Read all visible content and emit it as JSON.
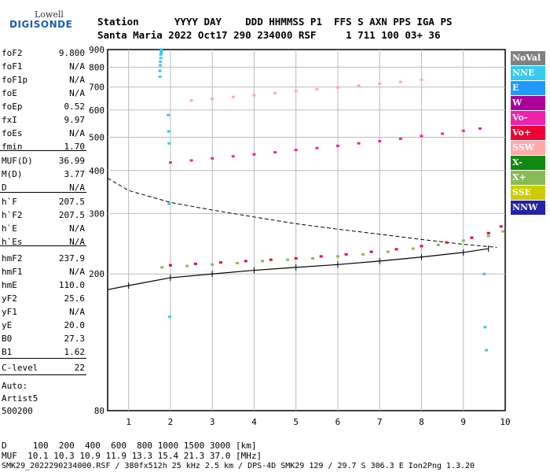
{
  "logo": {
    "line1": "Lowell",
    "line2": "DIGISONDE"
  },
  "header": {
    "labels": "Station      YYYY DAY    DDD HHMMSS P1  FFS S AXN PPS IGA PS",
    "values": "Santa Maria 2022 Oct17 290 234000 RSF     1 711 100 03+ 36"
  },
  "params": [
    {
      "name": "foF2",
      "value": "9.800"
    },
    {
      "name": "foF1",
      "value": "N/A"
    },
    {
      "name": "foF1p",
      "value": "N/A"
    },
    {
      "name": "foE",
      "value": "N/A"
    },
    {
      "name": "foEp",
      "value": "0.52"
    },
    {
      "name": "fxI",
      "value": "9.97"
    },
    {
      "name": "foEs",
      "value": "N/A"
    },
    {
      "name": "fmin",
      "value": "1.70"
    },
    {
      "name": "MUF(D)",
      "value": "36.99"
    },
    {
      "name": "M(D)",
      "value": "3.77"
    },
    {
      "name": "D",
      "value": "N/A"
    },
    {
      "name": "h`F",
      "value": "207.5"
    },
    {
      "name": "h`F2",
      "value": "207.5"
    },
    {
      "name": "h`E",
      "value": "N/A"
    },
    {
      "name": "h`Es",
      "value": "N/A"
    },
    {
      "name": "hmF2",
      "value": "237.9"
    },
    {
      "name": "hmF1",
      "value": "N/A"
    },
    {
      "name": "hmE",
      "value": "110.0"
    },
    {
      "name": "yF2",
      "value": "25.6"
    },
    {
      "name": "yF1",
      "value": "N/A"
    },
    {
      "name": "yE",
      "value": "20.0"
    },
    {
      "name": "B0",
      "value": "27.3"
    },
    {
      "name": "B1",
      "value": "1.62"
    },
    {
      "name": "C-level",
      "value": "22"
    }
  ],
  "notes": [
    "Auto:",
    "Artist5",
    "500200"
  ],
  "legend": [
    {
      "label": "NoVal",
      "color": "#808080"
    },
    {
      "label": "NNE",
      "color": "#33ccee"
    },
    {
      "label": "E",
      "color": "#2299ff"
    },
    {
      "label": "W",
      "color": "#aa0099"
    },
    {
      "label": "Vo-",
      "color": "#ee22aa"
    },
    {
      "label": "Vo+",
      "color": "#ee0033"
    },
    {
      "label": "SSW",
      "color": "#ffaaaa"
    },
    {
      "label": "X-",
      "color": "#118811"
    },
    {
      "label": "X+",
      "color": "#88bb55"
    },
    {
      "label": "SSE",
      "color": "#cccc00"
    },
    {
      "label": "NNW",
      "color": "#2222aa"
    }
  ],
  "footer": {
    "line1": "D     100  200  400  600  800 1000 1500 3000 [km]",
    "line2": "MUF  10.1 10.3 10.9 11.9 13.3 15.4 21.3 37.0 [MHz]",
    "line3": "SMK29_2022290234000.RSF / 380fx512h 25 kHz 2.5 km / DPS-4D SMK29 129 / 29.7 S 306.3 E Ion2Png 1.3.20"
  },
  "chart_data": {
    "type": "scatter",
    "xlabel": "",
    "ylabel": "",
    "xlim": [
      0.5,
      10
    ],
    "ylim": [
      80,
      900
    ],
    "x_ticks": [
      1,
      2,
      3,
      4,
      5,
      6,
      7,
      8,
      9,
      10
    ],
    "y_ticks": [
      80,
      200,
      300,
      400,
      500,
      600,
      700,
      800,
      900
    ],
    "y_scale": "log",
    "grid": true,
    "series": [
      {
        "name": "Vo+",
        "color": "#ee0033",
        "x": [
          2.0,
          2.6,
          3.2,
          3.8,
          4.4,
          5.0,
          5.6,
          6.2,
          6.8,
          7.4,
          8.0,
          8.6,
          9.2,
          9.6,
          9.9
        ],
        "y": [
          212,
          214,
          216,
          218,
          220,
          222,
          225,
          228,
          232,
          236,
          241,
          247,
          255,
          263,
          275
        ]
      },
      {
        "name": "X+",
        "color": "#88bb55",
        "x": [
          1.8,
          2.4,
          3.0,
          3.6,
          4.2,
          4.8,
          5.4,
          6.0,
          6.6,
          7.2,
          7.8,
          8.4,
          9.0,
          9.6,
          9.95
        ],
        "y": [
          209,
          211,
          213,
          215,
          218,
          220,
          222,
          225,
          228,
          232,
          237,
          243,
          250,
          258,
          266
        ]
      },
      {
        "name": "Vo-",
        "color": "#ee22aa",
        "x": [
          2.0,
          2.5,
          3.0,
          3.5,
          4.0,
          4.5,
          5.0,
          5.5,
          6.0,
          6.5,
          7.0,
          7.5,
          8.0,
          8.5,
          9.0,
          9.4
        ],
        "y": [
          422,
          428,
          434,
          440,
          446,
          452,
          459,
          465,
          472,
          480,
          487,
          495,
          504,
          512,
          522,
          530
        ]
      },
      {
        "name": "SSW",
        "color": "#ffaaaa",
        "x": [
          2.5,
          3.0,
          3.5,
          4.0,
          4.5,
          5.0,
          5.5,
          6.0,
          6.5,
          7.0,
          7.5,
          8.0
        ],
        "y": [
          640,
          647,
          655,
          663,
          672,
          681,
          690,
          698,
          707,
          716,
          725,
          735
        ]
      },
      {
        "name": "NNE",
        "color": "#33ccee",
        "x": [
          1.75,
          1.75,
          1.76,
          1.76,
          1.77,
          1.77,
          1.78,
          1.78,
          1.78,
          1.95,
          1.96,
          1.97,
          1.97,
          1.98,
          9.5,
          9.52,
          9.55
        ],
        "y": [
          750,
          780,
          810,
          830,
          850,
          870,
          880,
          890,
          900,
          580,
          520,
          480,
          320,
          150,
          200,
          140,
          120
        ]
      }
    ],
    "virtual_height_trace": {
      "x": [
        0.5,
        1.0,
        2.0,
        3.0,
        4.0,
        5.0,
        6.0,
        7.0,
        8.0,
        9.0,
        9.6
      ],
      "y": [
        180,
        185,
        195,
        200,
        205,
        209,
        213,
        218,
        224,
        231,
        237
      ]
    },
    "profile_curve": {
      "x": [
        0.5,
        1.0,
        2.0,
        3.0,
        4.0,
        5.0,
        6.0,
        7.0,
        8.0,
        9.0,
        9.8
      ],
      "y": [
        380,
        350,
        323,
        307,
        293,
        280,
        270,
        261,
        252,
        244,
        239
      ]
    }
  }
}
